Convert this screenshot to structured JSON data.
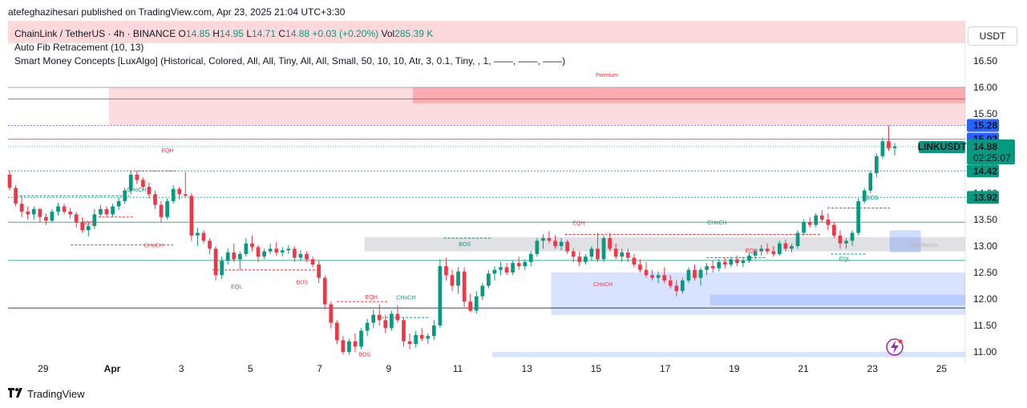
{
  "header": {
    "publisher_line": "atefeghazihesari published on TradingView.com, Apr 23, 2025 21:04 UTC+3:30"
  },
  "legend": {
    "symbol": "ChainLink / TetherUS · 4h · BINANCE",
    "o_label": "O",
    "o_value": "14.85",
    "h_label": "H",
    "h_value": "14.95",
    "l_label": "L",
    "l_value": "14.71",
    "c_label": "C",
    "c_value": "14.88",
    "change": "+0.03 (+0.20%)",
    "vol_label": "Vol",
    "vol_value": "285.39 K",
    "indicator_1": "Auto Fib Retracement (10, 13)",
    "indicator_2": "Smart Money Concepts [LuxAlgo] (Historical, Colored, All, All, Tiny, All, All, Small, 50, 10, 10, Atr, 3, 0.1, Tiny, , 1, ——, ——, ——)"
  },
  "currency": "USDT",
  "footer": {
    "brand": "TradingView"
  },
  "colors": {
    "up": "#089981",
    "down": "#f23645",
    "premium": "#f7525f",
    "discount": "#2962ff",
    "equilibrium": "#b2b5be"
  },
  "chart_data": {
    "type": "candlestick",
    "symbol": "LINKUSDT",
    "interval": "4h",
    "ylim": [
      10.9,
      16.85
    ],
    "y_ticks": [
      "16.50",
      "16.00",
      "15.50",
      "15.00",
      "14.50",
      "14.00",
      "13.50",
      "13.00",
      "12.50",
      "12.00",
      "11.50",
      "11.00"
    ],
    "x_ticks": [
      "29",
      "Apr",
      "3",
      "5",
      "7",
      "9",
      "11",
      "13",
      "15",
      "17",
      "19",
      "21",
      "23",
      "25"
    ],
    "price_labels": [
      {
        "value": 15.28,
        "text": "15.28",
        "color": "#2962ff"
      },
      {
        "value": 15.02,
        "text": "15.02",
        "color": "#2962ff"
      },
      {
        "value": 14.42,
        "text": "14.42",
        "color": "#089981"
      },
      {
        "value": 13.92,
        "text": "13.92",
        "color": "#089981"
      }
    ],
    "last_price": {
      "value": 14.88,
      "symbol_tag": "LINKUSDT",
      "text": "14.88",
      "countdown": "02:25:07"
    },
    "zone_labels": {
      "premium": "Premium",
      "equilibrium": "Equilibrium"
    },
    "smc_labels": [
      {
        "text": "EQH",
        "day": 1.6,
        "price": 14.77,
        "color": "#f23645"
      },
      {
        "text": "CHoCH",
        "day": 0.7,
        "price": 14.03,
        "color": "#089981"
      },
      {
        "text": "BOS",
        "day": -0.7,
        "price": 13.4,
        "color": "#f23645"
      },
      {
        "text": "CHoCH",
        "day": 1.2,
        "price": 12.98,
        "color": "#f23645"
      },
      {
        "text": "EQL",
        "day": 3.6,
        "price": 12.2,
        "color": "#089981"
      },
      {
        "text": "BOS",
        "day": 5.5,
        "price": 12.28,
        "color": "#f23645"
      },
      {
        "text": "EQH",
        "day": 7.5,
        "price": 12.0,
        "color": "#f23645"
      },
      {
        "text": "CHoCH",
        "day": 8.5,
        "price": 11.99,
        "color": "#089981"
      },
      {
        "text": "BOS",
        "day": 10.2,
        "price": 13.0,
        "color": "#089981"
      },
      {
        "text": "EQH",
        "day": 13.5,
        "price": 13.4,
        "color": "#f23645"
      },
      {
        "text": "CHoCH",
        "day": 14.2,
        "price": 12.24,
        "color": "#f23645"
      },
      {
        "text": "CHoCH",
        "day": 17.5,
        "price": 13.41,
        "color": "#089981"
      },
      {
        "text": "EQH",
        "day": 18.5,
        "price": 12.88,
        "color": "#f23645"
      },
      {
        "text": "EQL",
        "day": 21.2,
        "price": 12.72,
        "color": "#089981"
      },
      {
        "text": "BOS",
        "day": 22.0,
        "price": 13.88,
        "color": "#089981"
      },
      {
        "text": "BOS",
        "day": 7.3,
        "price": 10.92,
        "color": "#f23645"
      }
    ],
    "fib_levels": [
      16.0,
      15.78,
      15.28,
      15.02,
      14.88,
      14.42,
      13.92,
      13.45,
      12.73,
      11.83
    ],
    "zones": [
      {
        "name": "premium-zone",
        "day_start": -0.1,
        "day_end": 25.8,
        "top": 16.0,
        "bottom": 15.28,
        "fill": "#f7525f",
        "opacity": 0.2
      },
      {
        "name": "premium-inner-zone",
        "day_start": 8.7,
        "day_end": 25.4,
        "top": 16.0,
        "bottom": 15.7,
        "fill": "#f7525f",
        "opacity": 0.35
      },
      {
        "name": "equilibrium-zone",
        "day_start": 7.3,
        "day_end": 25.4,
        "top": 13.17,
        "bottom": 12.9,
        "fill": "#b2b5be",
        "opacity": 0.4
      },
      {
        "name": "discount-zone-1",
        "day_start": 12.7,
        "day_end": 25.8,
        "top": 12.5,
        "bottom": 11.7,
        "fill": "#2962ff",
        "opacity": 0.18
      },
      {
        "name": "discount-zone-2",
        "day_start": 17.3,
        "day_end": 25.8,
        "top": 12.08,
        "bottom": 11.88,
        "fill": "#2962ff",
        "opacity": 0.18
      },
      {
        "name": "discount-zone-3",
        "day_start": 22.5,
        "day_end": 23.4,
        "top": 13.3,
        "bottom": 12.88,
        "fill": "#2962ff",
        "opacity": 0.22
      },
      {
        "name": "discount-zone-4",
        "day_start": 11.0,
        "day_end": 25.8,
        "top": 11.0,
        "bottom": 10.9,
        "fill": "#2962ff",
        "opacity": 0.18
      }
    ],
    "candles": [
      [
        14.35,
        14.42,
        14.05,
        14.1
      ],
      [
        14.1,
        14.15,
        13.75,
        13.8
      ],
      [
        13.8,
        13.95,
        13.55,
        13.65
      ],
      [
        13.65,
        13.75,
        13.5,
        13.6
      ],
      [
        13.6,
        13.75,
        13.5,
        13.7
      ],
      [
        13.7,
        13.72,
        13.45,
        13.55
      ],
      [
        13.55,
        13.62,
        13.4,
        13.48
      ],
      [
        13.48,
        13.7,
        13.45,
        13.65
      ],
      [
        13.65,
        13.82,
        13.58,
        13.75
      ],
      [
        13.75,
        13.8,
        13.6,
        13.65
      ],
      [
        13.65,
        13.72,
        13.52,
        13.6
      ],
      [
        13.6,
        13.65,
        13.35,
        13.45
      ],
      [
        13.45,
        13.55,
        13.25,
        13.3
      ],
      [
        13.3,
        13.45,
        13.18,
        13.38
      ],
      [
        13.38,
        13.7,
        13.32,
        13.6
      ],
      [
        13.6,
        13.78,
        13.55,
        13.7
      ],
      [
        13.7,
        13.75,
        13.55,
        13.6
      ],
      [
        13.6,
        13.8,
        13.55,
        13.75
      ],
      [
        13.75,
        13.92,
        13.68,
        13.85
      ],
      [
        13.85,
        14.1,
        13.8,
        14.05
      ],
      [
        14.05,
        14.42,
        13.98,
        14.35
      ],
      [
        14.35,
        14.42,
        14.18,
        14.25
      ],
      [
        14.25,
        14.3,
        14.05,
        14.12
      ],
      [
        14.12,
        14.2,
        13.9,
        13.98
      ],
      [
        13.98,
        14.05,
        13.7,
        13.78
      ],
      [
        13.78,
        13.85,
        13.45,
        13.55
      ],
      [
        13.55,
        13.9,
        13.5,
        13.85
      ],
      [
        13.85,
        14.15,
        13.8,
        14.08
      ],
      [
        14.08,
        14.12,
        13.88,
        13.98
      ],
      [
        13.98,
        14.4,
        13.92,
        13.95
      ],
      [
        13.95,
        14.0,
        13.1,
        13.2
      ],
      [
        13.2,
        13.35,
        13.0,
        13.25
      ],
      [
        13.25,
        13.3,
        13.05,
        13.1
      ],
      [
        13.1,
        13.15,
        12.85,
        12.95
      ],
      [
        12.95,
        13.0,
        12.35,
        12.45
      ],
      [
        12.45,
        12.8,
        12.38,
        12.72
      ],
      [
        12.72,
        12.95,
        12.65,
        12.88
      ],
      [
        12.88,
        13.05,
        12.7,
        12.75
      ],
      [
        12.75,
        12.9,
        12.55,
        12.85
      ],
      [
        12.85,
        13.15,
        12.8,
        13.05
      ],
      [
        13.05,
        13.2,
        12.9,
        12.98
      ],
      [
        12.98,
        13.02,
        12.7,
        12.8
      ],
      [
        12.8,
        12.95,
        12.75,
        12.9
      ],
      [
        12.9,
        13.05,
        12.85,
        12.95
      ],
      [
        12.95,
        13.08,
        12.82,
        12.88
      ],
      [
        12.88,
        12.98,
        12.8,
        12.92
      ],
      [
        12.92,
        13.02,
        12.85,
        12.95
      ],
      [
        12.95,
        13.0,
        12.7,
        12.78
      ],
      [
        12.78,
        12.92,
        12.72,
        12.85
      ],
      [
        12.85,
        12.9,
        12.7,
        12.75
      ],
      [
        12.75,
        12.8,
        12.6,
        12.65
      ],
      [
        12.65,
        12.72,
        12.3,
        12.4
      ],
      [
        12.4,
        12.45,
        11.8,
        11.9
      ],
      [
        11.9,
        11.95,
        11.45,
        11.55
      ],
      [
        11.55,
        11.6,
        11.15,
        11.22
      ],
      [
        11.22,
        11.3,
        10.95,
        11.0
      ],
      [
        11.0,
        11.25,
        10.95,
        11.2
      ],
      [
        11.2,
        11.35,
        11.0,
        11.1
      ],
      [
        11.1,
        11.45,
        11.05,
        11.4
      ],
      [
        11.4,
        11.62,
        11.3,
        11.55
      ],
      [
        11.55,
        11.8,
        11.45,
        11.7
      ],
      [
        11.7,
        11.9,
        11.5,
        11.6
      ],
      [
        11.6,
        11.7,
        11.35,
        11.45
      ],
      [
        11.45,
        11.78,
        11.4,
        11.72
      ],
      [
        11.72,
        11.88,
        11.55,
        11.6
      ],
      [
        11.6,
        11.65,
        11.1,
        11.2
      ],
      [
        11.2,
        11.35,
        11.05,
        11.15
      ],
      [
        11.15,
        11.4,
        11.08,
        11.32
      ],
      [
        11.32,
        11.45,
        11.2,
        11.25
      ],
      [
        11.25,
        11.35,
        11.15,
        11.3
      ],
      [
        11.3,
        11.6,
        11.22,
        11.5
      ],
      [
        11.5,
        12.75,
        11.45,
        12.62
      ],
      [
        12.62,
        12.78,
        12.35,
        12.45
      ],
      [
        12.45,
        12.55,
        12.15,
        12.25
      ],
      [
        12.25,
        12.6,
        12.1,
        12.52
      ],
      [
        12.52,
        12.6,
        11.85,
        11.95
      ],
      [
        11.95,
        12.1,
        11.75,
        11.78
      ],
      [
        11.78,
        12.15,
        11.72,
        12.05
      ],
      [
        12.05,
        12.3,
        11.98,
        12.25
      ],
      [
        12.25,
        12.55,
        12.2,
        12.48
      ],
      [
        12.48,
        12.62,
        12.35,
        12.55
      ],
      [
        12.55,
        12.7,
        12.45,
        12.6
      ],
      [
        12.6,
        12.68,
        12.45,
        12.5
      ],
      [
        12.5,
        12.72,
        12.45,
        12.68
      ],
      [
        12.68,
        12.8,
        12.55,
        12.62
      ],
      [
        12.62,
        12.75,
        12.55,
        12.7
      ],
      [
        12.7,
        12.9,
        12.62,
        12.85
      ],
      [
        12.85,
        13.15,
        12.8,
        13.1
      ],
      [
        13.1,
        13.22,
        12.95,
        13.15
      ],
      [
        13.15,
        13.28,
        13.05,
        13.1
      ],
      [
        13.1,
        13.2,
        12.95,
        13.0
      ],
      [
        13.0,
        13.15,
        12.92,
        13.08
      ],
      [
        13.08,
        13.12,
        12.85,
        12.9
      ],
      [
        12.9,
        12.95,
        12.7,
        12.8
      ],
      [
        12.8,
        12.9,
        12.62,
        12.7
      ],
      [
        12.7,
        12.85,
        12.65,
        12.8
      ],
      [
        12.8,
        13.0,
        12.72,
        12.95
      ],
      [
        12.95,
        13.25,
        12.7,
        12.75
      ],
      [
        12.75,
        13.2,
        12.7,
        13.15
      ],
      [
        13.15,
        13.25,
        12.9,
        12.95
      ],
      [
        12.95,
        13.05,
        12.75,
        12.8
      ],
      [
        12.8,
        12.95,
        12.7,
        12.88
      ],
      [
        12.88,
        12.95,
        12.7,
        12.78
      ],
      [
        12.78,
        12.85,
        12.6,
        12.65
      ],
      [
        12.65,
        12.75,
        12.5,
        12.55
      ],
      [
        12.55,
        12.7,
        12.4,
        12.45
      ],
      [
        12.45,
        12.55,
        12.35,
        12.4
      ],
      [
        12.4,
        12.52,
        12.3,
        12.45
      ],
      [
        12.45,
        12.6,
        12.3,
        12.35
      ],
      [
        12.35,
        12.45,
        12.2,
        12.25
      ],
      [
        12.25,
        12.35,
        12.05,
        12.15
      ],
      [
        12.15,
        12.4,
        12.1,
        12.35
      ],
      [
        12.35,
        12.6,
        12.3,
        12.55
      ],
      [
        12.55,
        12.65,
        12.35,
        12.4
      ],
      [
        12.4,
        12.6,
        12.25,
        12.55
      ],
      [
        12.55,
        12.68,
        12.45,
        12.62
      ],
      [
        12.62,
        12.72,
        12.5,
        12.58
      ],
      [
        12.58,
        12.75,
        12.52,
        12.7
      ],
      [
        12.7,
        12.78,
        12.58,
        12.65
      ],
      [
        12.65,
        12.8,
        12.6,
        12.75
      ],
      [
        12.75,
        12.82,
        12.62,
        12.68
      ],
      [
        12.68,
        12.8,
        12.6,
        12.72
      ],
      [
        12.72,
        12.88,
        12.68,
        12.82
      ],
      [
        12.82,
        12.95,
        12.75,
        12.9
      ],
      [
        12.9,
        13.02,
        12.82,
        12.95
      ],
      [
        12.95,
        13.05,
        12.85,
        12.9
      ],
      [
        12.9,
        13.0,
        12.8,
        12.85
      ],
      [
        12.85,
        13.1,
        12.82,
        13.05
      ],
      [
        13.05,
        13.12,
        12.9,
        12.95
      ],
      [
        12.95,
        13.05,
        12.88,
        13.0
      ],
      [
        13.0,
        13.3,
        12.95,
        13.25
      ],
      [
        13.25,
        13.5,
        13.2,
        13.45
      ],
      [
        13.45,
        13.55,
        13.35,
        13.4
      ],
      [
        13.4,
        13.62,
        13.35,
        13.58
      ],
      [
        13.58,
        13.68,
        13.45,
        13.5
      ],
      [
        13.5,
        13.62,
        13.3,
        13.4
      ],
      [
        13.4,
        13.45,
        13.15,
        13.2
      ],
      [
        13.2,
        13.3,
        12.95,
        13.05
      ],
      [
        13.05,
        13.15,
        12.95,
        13.1
      ],
      [
        13.1,
        13.3,
        13.0,
        13.25
      ],
      [
        13.25,
        13.9,
        13.2,
        13.85
      ],
      [
        13.85,
        14.1,
        13.8,
        14.05
      ],
      [
        14.05,
        14.42,
        14.0,
        14.38
      ],
      [
        14.38,
        14.75,
        14.3,
        14.7
      ],
      [
        14.7,
        15.05,
        14.65,
        14.98
      ],
      [
        14.98,
        15.28,
        14.8,
        14.85
      ],
      [
        14.85,
        14.95,
        14.71,
        14.88
      ]
    ]
  }
}
